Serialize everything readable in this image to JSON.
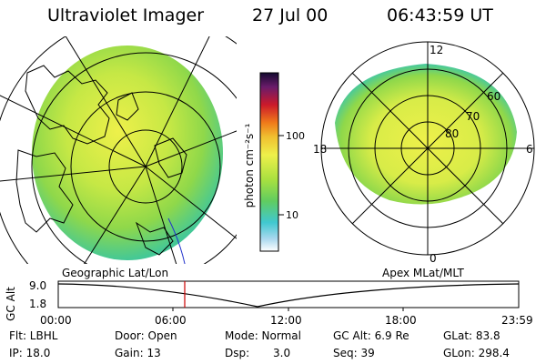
{
  "header": {
    "title": "Ultraviolet Imager",
    "date": "27 Jul 00",
    "time": "06:43:59 UT"
  },
  "colorbar": {
    "unit_label": "photon cm⁻²s⁻¹",
    "tick_100": "100",
    "tick_10": "10"
  },
  "polar_plot": {
    "ring_labels": [
      "80",
      "70",
      "60"
    ],
    "mlt_labels": {
      "top": "12",
      "bottom": "0",
      "left": "18",
      "right": "6"
    }
  },
  "panel_labels": {
    "geographic": "Geographic Lat/Lon",
    "apex": "Apex MLat/MLT"
  },
  "altitude_plot": {
    "axis_label": "GC Alt",
    "y_top": "9.0",
    "y_bottom": "1.8",
    "x_ticks": [
      "00:00",
      "06:00",
      "12:00",
      "18:00",
      "23:59"
    ],
    "current_time_marker": "06:44",
    "line_color": "#000000",
    "marker_color": "#cc0000"
  },
  "status": {
    "flt": "Flt: LBHL",
    "ip": "IP: 18.0",
    "door": "Door: Open",
    "gain": "Gain: 13",
    "mode": "Mode: Normal",
    "dsp_label": "Dsp:",
    "dsp_value": "3.0",
    "gc_alt": "GC Alt: 6.9 Re",
    "seq": "Seq: 39",
    "glat": "GLat: 83.8",
    "glon": "GLon: 298.4"
  }
}
